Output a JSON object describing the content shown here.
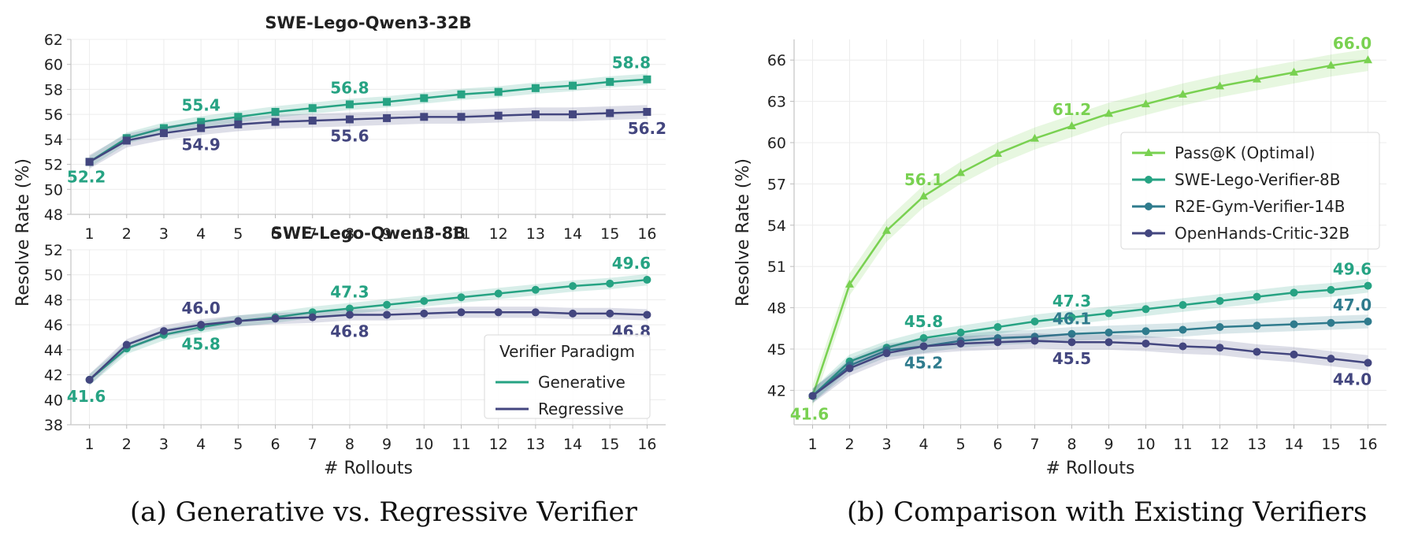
{
  "captions": {
    "a": "(a) Generative vs. Regressive Verifier",
    "b": "(b) Comparison with Existing Verifiers"
  },
  "colors": {
    "generative": "#26a383",
    "regressive": "#43467f",
    "passk": "#79d151",
    "swe_lego": "#26a383",
    "r2e": "#2f7b8d",
    "openhands": "#43467f"
  },
  "chart_data": [
    {
      "id": "a-top",
      "type": "line",
      "title": "SWE-Lego-Qwen3-32B",
      "xlabel": "",
      "ylabel": "Resolve Rate (%)",
      "x": [
        1,
        2,
        3,
        4,
        5,
        6,
        7,
        8,
        9,
        10,
        11,
        12,
        13,
        14,
        15,
        16
      ],
      "xlim": [
        0.5,
        16.5
      ],
      "ylim": [
        48,
        62
      ],
      "yticks": [
        48,
        50,
        52,
        54,
        56,
        58,
        60,
        62
      ],
      "grid": true,
      "series": [
        {
          "name": "Generative",
          "color": "#26a383",
          "marker": "square",
          "values": [
            52.2,
            54.1,
            54.9,
            55.4,
            55.8,
            56.2,
            56.5,
            56.8,
            57.0,
            57.3,
            57.6,
            57.8,
            58.1,
            58.3,
            58.6,
            58.8
          ],
          "band": 0.45,
          "labels": [
            {
              "i": 0,
              "text": "52.2"
            },
            {
              "i": 3,
              "text": "55.4"
            },
            {
              "i": 7,
              "text": "56.8"
            },
            {
              "i": 15,
              "text": "58.8"
            }
          ]
        },
        {
          "name": "Regressive",
          "color": "#43467f",
          "marker": "square",
          "values": [
            52.2,
            53.9,
            54.5,
            54.9,
            55.2,
            55.4,
            55.5,
            55.6,
            55.7,
            55.8,
            55.8,
            55.9,
            56.0,
            56.0,
            56.1,
            56.2
          ],
          "band": 0.55,
          "labels": [
            {
              "i": 3,
              "text": "54.9"
            },
            {
              "i": 7,
              "text": "55.6"
            },
            {
              "i": 15,
              "text": "56.2"
            }
          ]
        }
      ]
    },
    {
      "id": "a-bottom",
      "type": "line",
      "title": "SWE-Lego-Qwen3-8B",
      "xlabel": "# Rollouts",
      "ylabel": "Resolve Rate (%)",
      "x": [
        1,
        2,
        3,
        4,
        5,
        6,
        7,
        8,
        9,
        10,
        11,
        12,
        13,
        14,
        15,
        16
      ],
      "xlim": [
        0.5,
        16.5
      ],
      "ylim": [
        38,
        52
      ],
      "yticks": [
        38,
        40,
        42,
        44,
        46,
        48,
        50,
        52
      ],
      "grid": true,
      "legend": {
        "title": "Verifier Paradigm",
        "position": "bottom-right",
        "entries": [
          "Generative",
          "Regressive"
        ]
      },
      "series": [
        {
          "name": "Generative",
          "color": "#26a383",
          "marker": "circle",
          "values": [
            41.6,
            44.1,
            45.2,
            45.8,
            46.3,
            46.6,
            47.0,
            47.3,
            47.6,
            47.9,
            48.2,
            48.5,
            48.8,
            49.1,
            49.3,
            49.6
          ],
          "band": 0.45,
          "labels": [
            {
              "i": 0,
              "text": "41.6"
            },
            {
              "i": 3,
              "text": "45.8"
            },
            {
              "i": 7,
              "text": "47.3"
            },
            {
              "i": 15,
              "text": "49.6"
            }
          ]
        },
        {
          "name": "Regressive",
          "color": "#43467f",
          "marker": "circle",
          "values": [
            41.6,
            44.4,
            45.5,
            46.0,
            46.3,
            46.5,
            46.6,
            46.8,
            46.8,
            46.9,
            47.0,
            47.0,
            47.0,
            46.9,
            46.9,
            46.8
          ],
          "band": 0.45,
          "labels": [
            {
              "i": 3,
              "text": "46.0"
            },
            {
              "i": 7,
              "text": "46.8"
            },
            {
              "i": 15,
              "text": "46.8"
            }
          ]
        }
      ]
    },
    {
      "id": "b",
      "type": "line",
      "title": "",
      "xlabel": "# Rollouts",
      "ylabel": "Resolve Rate (%)",
      "x": [
        1,
        2,
        3,
        4,
        5,
        6,
        7,
        8,
        9,
        10,
        11,
        12,
        13,
        14,
        15,
        16
      ],
      "xlim": [
        0.5,
        16.5
      ],
      "ylim": [
        39.5,
        67.5
      ],
      "yticks": [
        42,
        45,
        48,
        51,
        54,
        57,
        60,
        63,
        66
      ],
      "grid": true,
      "legend": {
        "title": "",
        "position": "center-right",
        "entries": [
          "Pass@K (Optimal)",
          "SWE-Lego-Verifier-8B",
          "R2E-Gym-Verifier-14B",
          "OpenHands-Critic-32B"
        ]
      },
      "series": [
        {
          "name": "Pass@K (Optimal)",
          "color": "#79d151",
          "marker": "triangle",
          "values": [
            41.6,
            49.7,
            53.6,
            56.1,
            57.8,
            59.2,
            60.3,
            61.2,
            62.1,
            62.8,
            63.5,
            64.1,
            64.6,
            65.1,
            65.6,
            66.0
          ],
          "band": 0.8,
          "labels": [
            {
              "i": 0,
              "text": "41.6"
            },
            {
              "i": 3,
              "text": "56.1"
            },
            {
              "i": 7,
              "text": "61.2"
            },
            {
              "i": 15,
              "text": "66.0"
            }
          ]
        },
        {
          "name": "SWE-Lego-Verifier-8B",
          "color": "#26a383",
          "marker": "circle",
          "values": [
            41.6,
            44.1,
            45.1,
            45.8,
            46.2,
            46.6,
            47.0,
            47.3,
            47.6,
            47.9,
            48.2,
            48.5,
            48.8,
            49.1,
            49.3,
            49.6
          ],
          "band": 0.5,
          "labels": [
            {
              "i": 3,
              "text": "45.8"
            },
            {
              "i": 7,
              "text": "47.3"
            },
            {
              "i": 15,
              "text": "49.6"
            }
          ]
        },
        {
          "name": "R2E-Gym-Verifier-14B",
          "color": "#2f7b8d",
          "marker": "circle",
          "values": [
            41.6,
            43.8,
            44.9,
            45.2,
            45.6,
            45.8,
            45.9,
            46.1,
            46.2,
            46.3,
            46.4,
            46.6,
            46.7,
            46.8,
            46.9,
            47.0
          ],
          "band": 0.5,
          "labels": [
            {
              "i": 3,
              "text": "45.2"
            },
            {
              "i": 7,
              "text": "46.1"
            },
            {
              "i": 15,
              "text": "47.0"
            }
          ]
        },
        {
          "name": "OpenHands-Critic-32B",
          "color": "#43467f",
          "marker": "circle",
          "values": [
            41.6,
            43.6,
            44.7,
            45.2,
            45.4,
            45.5,
            45.6,
            45.5,
            45.5,
            45.4,
            45.2,
            45.1,
            44.8,
            44.6,
            44.3,
            44.0
          ],
          "band": 0.55,
          "labels": [
            {
              "i": 7,
              "text": "45.5"
            },
            {
              "i": 15,
              "text": "44.0"
            }
          ]
        }
      ]
    }
  ]
}
